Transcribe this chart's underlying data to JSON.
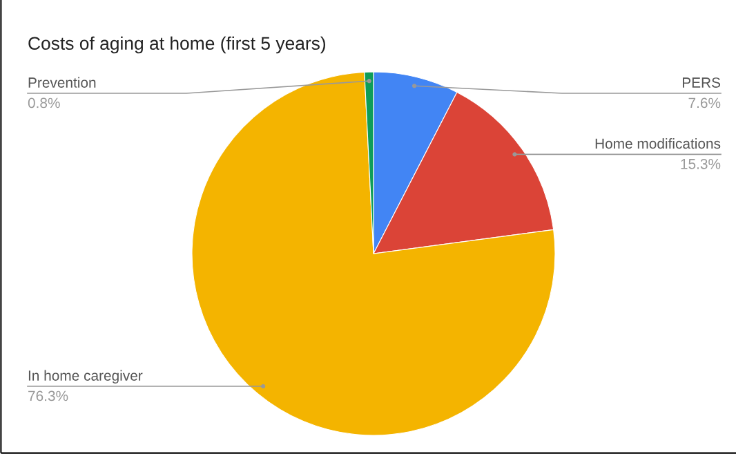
{
  "chart_data": {
    "type": "pie",
    "title": "Costs of aging at home (first 5 years)",
    "categories": [
      "PERS",
      "Home modifications",
      "In home caregiver",
      "Prevention"
    ],
    "values": [
      7.6,
      15.3,
      76.3,
      0.8
    ],
    "colors": [
      "#4285f4",
      "#db4437",
      "#f4b400",
      "#0f9d58"
    ],
    "value_labels": [
      "7.6%",
      "15.3%",
      "76.3%",
      "0.8%"
    ]
  }
}
